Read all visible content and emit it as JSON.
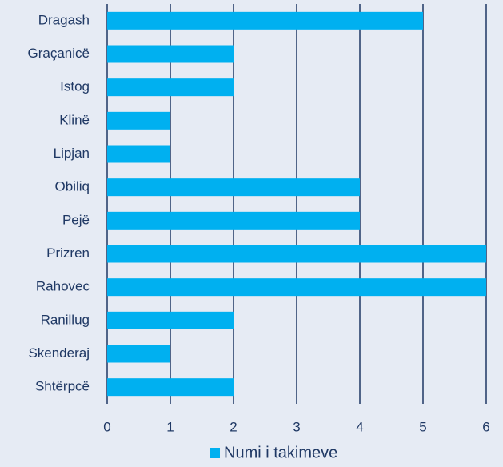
{
  "chart_data": {
    "type": "bar",
    "orientation": "horizontal",
    "categories": [
      "Dragash",
      "Graçanicë",
      "Istog",
      "Klinë",
      "Lipjan",
      "Obiliq",
      "Pejë",
      "Prizren",
      "Rahovec",
      "Ranillug",
      "Skenderaj",
      "Shtërpcë"
    ],
    "series": [
      {
        "name": "Numi i takimeve",
        "color": "#00b0f0",
        "values": [
          5,
          2,
          2,
          1,
          1,
          4,
          4,
          6,
          6,
          2,
          1,
          2
        ]
      }
    ],
    "xlim": [
      0,
      6
    ],
    "xticks": [
      0,
      1,
      2,
      3,
      4,
      5,
      6
    ],
    "grid": true,
    "legend": "bottom"
  }
}
